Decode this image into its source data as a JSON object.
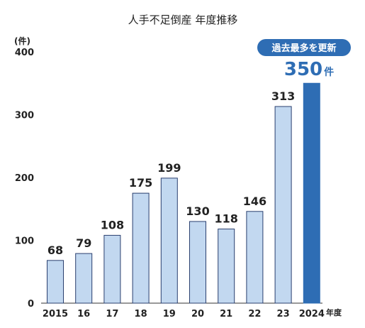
{
  "chart_data": {
    "type": "bar",
    "title": "人手不足倒産 年度推移",
    "ylabel": "(件)",
    "xlabel": "年度",
    "ylim": [
      0,
      400
    ],
    "yticks": [
      0,
      100,
      200,
      300,
      400
    ],
    "categories": [
      "2015",
      "16",
      "17",
      "18",
      "19",
      "20",
      "21",
      "22",
      "23",
      "2024"
    ],
    "values": [
      68,
      79,
      108,
      175,
      199,
      130,
      118,
      146,
      313,
      350
    ],
    "data_labels": [
      "68",
      "79",
      "108",
      "175",
      "199",
      "130",
      "118",
      "146",
      "313",
      ""
    ],
    "highlight": {
      "index": 9,
      "value_label": "350",
      "unit_label": "件",
      "badge": "過去最多を更新"
    },
    "grid": false,
    "colors": {
      "bar": "#c2d8f0",
      "bar_stroke": "#2a3f6e",
      "highlight_bar": "#2e6db4",
      "highlight_text": "#2e6db4",
      "badge_bg": "#2e6db4",
      "axis": "#333333"
    }
  }
}
